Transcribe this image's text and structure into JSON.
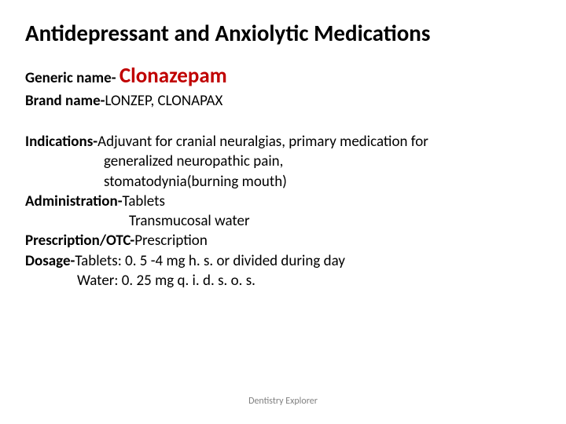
{
  "title": "Antidepressant and Anxiolytic Medications",
  "generic": {
    "label": "Generic name- ",
    "value": "Clonazepam"
  },
  "brand": {
    "label": "Brand name-",
    "value": "LONZEP, CLONAPAX"
  },
  "indications": {
    "label": "Indications-",
    "line1": "Adjuvant for cranial neuralgias, primary medication for",
    "line2": "generalized neuropathic pain,",
    "line3": "stomatodynia(burning mouth)"
  },
  "administration": {
    "label": "Administration-",
    "line1": "Tablets",
    "line2": "Transmucosal water"
  },
  "prescription": {
    "label": "Prescription/OTC-",
    "value": "Prescription"
  },
  "dosage": {
    "label": "Dosage-",
    "line1": "Tablets: 0. 5 -4 mg  h. s. or divided during day",
    "line2": "Water: 0. 25 mg q. i. d.  s. o. s."
  },
  "footer": "Dentistry Explorer"
}
